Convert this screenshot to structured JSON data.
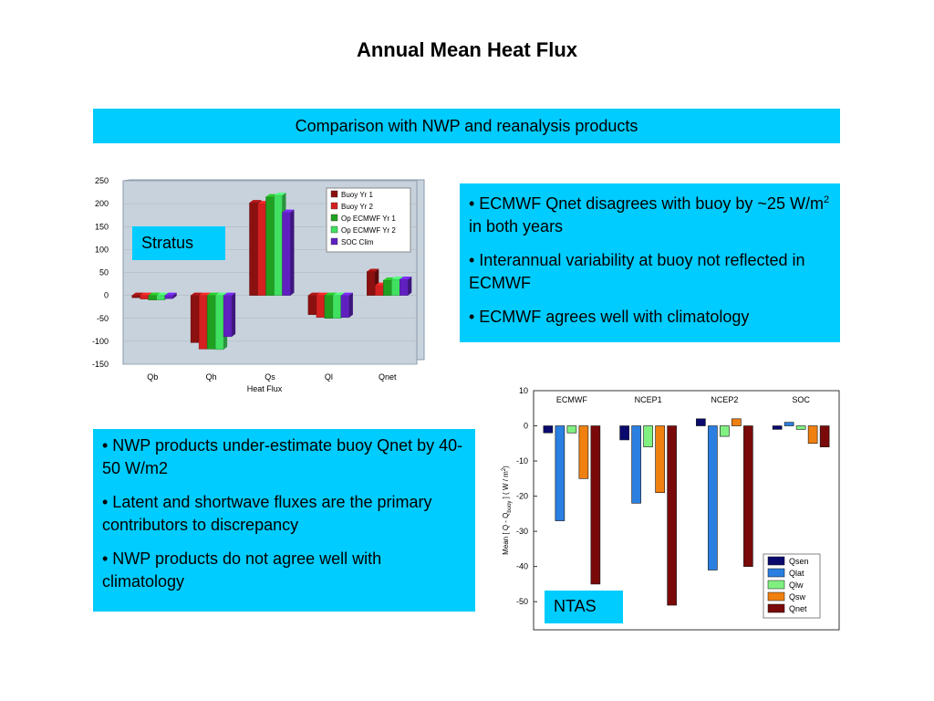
{
  "slide": {
    "title": "Annual Mean Heat Flux",
    "banner": "Comparison with NWP and reanalysis products",
    "ecmwf_bullets": [
      "• ECMWF Qnet disagrees with buoy by ~25 W/m",
      "2",
      " in both years",
      "• Interannual variability at buoy not reflected in ECMWF",
      "• ECMWF agrees well with climatology"
    ],
    "nwp_bullets": [
      "• NWP products under-estimate buoy Qnet by 40-50  W/m2",
      "• Latent and shortwave fluxes are the primary contributors to discrepancy",
      "• NWP products do not agree well with climatology"
    ],
    "stratus_label": "Stratus",
    "ntas_label": "NTAS",
    "colors": {
      "banner": "#00ccff"
    }
  },
  "chart_data": [
    {
      "type": "bar",
      "title": "",
      "xlabel": "Heat Flux",
      "ylabel": "",
      "ylim": [
        -150,
        250
      ],
      "yticks": [
        250,
        200,
        150,
        100,
        50,
        0,
        -50,
        -100,
        -150
      ],
      "categories": [
        "Qb",
        "Qh",
        "Qs",
        "Ql",
        "Qnet"
      ],
      "legend_position": "top-right",
      "series": [
        {
          "name": "Buoy Yr 1",
          "color": "#8b1010",
          "values": [
            -5,
            -103,
            202,
            -42,
            52
          ]
        },
        {
          "name": "Buoy Yr 2",
          "color": "#d42020",
          "values": [
            -8,
            -117,
            200,
            -48,
            22
          ]
        },
        {
          "name": "Op ECMWF Yr 1",
          "color": "#20a020",
          "values": [
            -10,
            -117,
            215,
            -50,
            33
          ]
        },
        {
          "name": "Op ECMWF Yr 2",
          "color": "#40e060",
          "values": [
            -10,
            -118,
            218,
            -50,
            35
          ]
        },
        {
          "name": "SOC Clim",
          "color": "#6020c0",
          "values": [
            -7,
            -90,
            181,
            -48,
            35
          ]
        }
      ]
    },
    {
      "type": "bar",
      "title": "",
      "xlabel": "",
      "ylabel": "Mean [ Q - Q",
      "ylabel_sub": "buoy",
      "ylabel_tail": " ]  ( W / m",
      "ylabel_sup": "2",
      "ylabel_end": ")",
      "ylim": [
        -58,
        10
      ],
      "yticks": [
        10,
        0,
        -10,
        -20,
        -30,
        -40,
        -50
      ],
      "categories": [
        "ECMWF",
        "NCEP1",
        "NCEP2",
        "SOC"
      ],
      "legend_position": "bottom-right",
      "series": [
        {
          "name": "Qsen",
          "color": "#0a0a6e",
          "values": [
            -2,
            -4,
            2,
            -1
          ]
        },
        {
          "name": "Qlat",
          "color": "#2a7fe0",
          "values": [
            -27,
            -22,
            -41,
            1
          ]
        },
        {
          "name": "Qlw",
          "color": "#80f080",
          "values": [
            -2,
            -6,
            -3,
            -1
          ]
        },
        {
          "name": "Qsw",
          "color": "#f08010",
          "values": [
            -15,
            -19,
            2,
            -5
          ]
        },
        {
          "name": "Qnet",
          "color": "#7a0a0a",
          "values": [
            -45,
            -51,
            -40,
            -6
          ]
        }
      ]
    }
  ]
}
